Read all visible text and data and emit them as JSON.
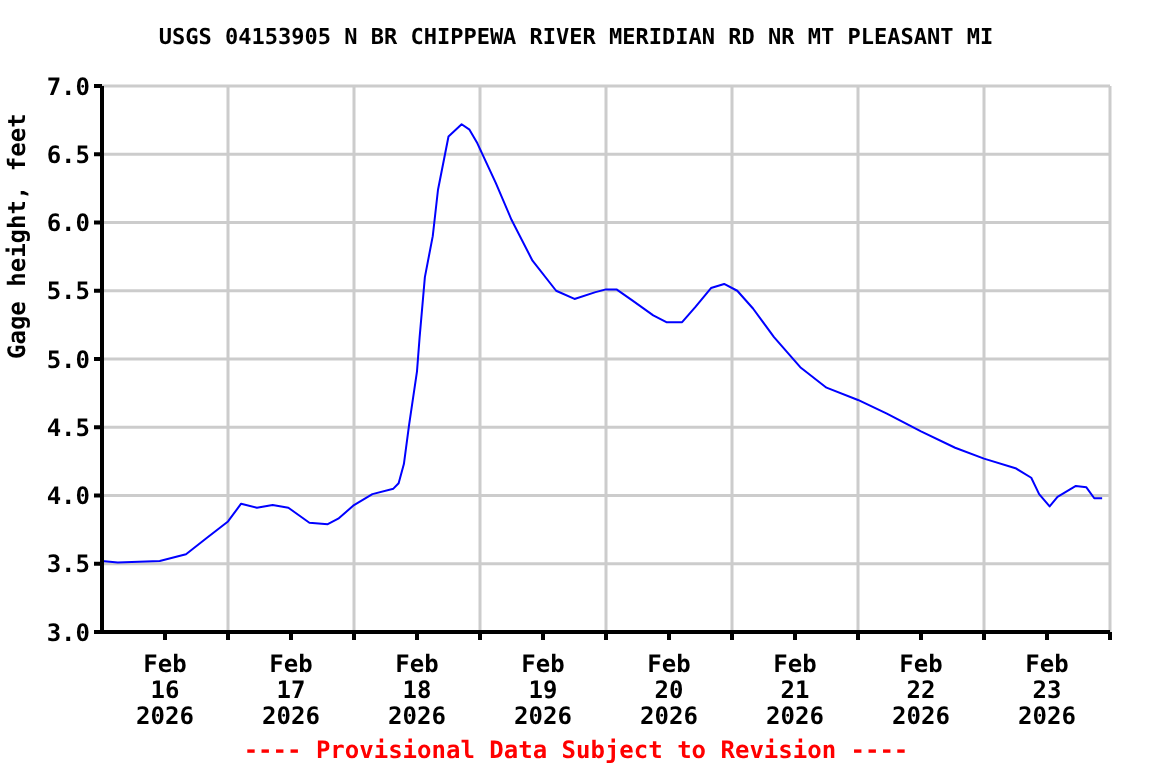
{
  "chart_data": {
    "type": "line",
    "title": "USGS 04153905 N BR CHIPPEWA RIVER MERIDIAN RD NR MT PLEASANT MI",
    "ylabel": "Gage height, feet",
    "annotations": [
      "---- Provisional Data Subject to Revision ----"
    ],
    "x": [
      "2026-02-16T00:00",
      "2026-02-16T03:00",
      "2026-02-16T11:00",
      "2026-02-16T16:00",
      "2026-02-16T20:00",
      "2026-02-17T00:00",
      "2026-02-17T02:30",
      "2026-02-17T05:30",
      "2026-02-17T08:30",
      "2026-02-17T11:30",
      "2026-02-17T15:30",
      "2026-02-17T19:00",
      "2026-02-17T21:00",
      "2026-02-18T00:00",
      "2026-02-18T03:30",
      "2026-02-18T07:30",
      "2026-02-18T08:30",
      "2026-02-18T09:30",
      "2026-02-18T10:30",
      "2026-02-18T12:00",
      "2026-02-18T12:30",
      "2026-02-18T13:30",
      "2026-02-18T15:00",
      "2026-02-18T16:00",
      "2026-02-18T18:00",
      "2026-02-18T20:30",
      "2026-02-18T22:00",
      "2026-02-18T23:30",
      "2026-02-19T03:00",
      "2026-02-19T06:00",
      "2026-02-19T10:00",
      "2026-02-19T14:30",
      "2026-02-19T18:00",
      "2026-02-19T22:00",
      "2026-02-20T00:00",
      "2026-02-20T02:00",
      "2026-02-20T05:00",
      "2026-02-20T09:00",
      "2026-02-20T11:30",
      "2026-02-20T14:30",
      "2026-02-20T17:00",
      "2026-02-20T20:00",
      "2026-02-20T22:30",
      "2026-02-21T01:00",
      "2026-02-21T04:00",
      "2026-02-21T08:00",
      "2026-02-21T13:00",
      "2026-02-21T18:00",
      "2026-02-22T00:00",
      "2026-02-22T05:30",
      "2026-02-22T12:00",
      "2026-02-22T18:30",
      "2026-02-23T00:00",
      "2026-02-23T06:00",
      "2026-02-23T09:00",
      "2026-02-23T10:30",
      "2026-02-23T12:30",
      "2026-02-23T14:00",
      "2026-02-23T17:30",
      "2026-02-23T19:30",
      "2026-02-23T21:00",
      "2026-02-23T22:30"
    ],
    "series": [
      {
        "color": "#0000ff",
        "values": [
          3.52,
          3.51,
          3.52,
          3.57,
          3.69,
          3.81,
          3.94,
          3.91,
          3.93,
          3.91,
          3.8,
          3.79,
          3.83,
          3.93,
          4.01,
          4.05,
          4.09,
          4.23,
          4.52,
          4.91,
          5.16,
          5.6,
          5.9,
          6.24,
          6.63,
          6.72,
          6.68,
          6.58,
          6.29,
          6.02,
          5.72,
          5.5,
          5.44,
          5.49,
          5.51,
          5.51,
          5.43,
          5.32,
          5.27,
          5.27,
          5.38,
          5.52,
          5.55,
          5.5,
          5.37,
          5.16,
          4.94,
          4.79,
          4.7,
          4.6,
          4.47,
          4.35,
          4.27,
          4.2,
          4.13,
          4.01,
          3.92,
          3.99,
          4.07,
          4.06,
          3.98,
          3.98
        ]
      }
    ],
    "xlim": [
      "2026-02-16T00:00",
      "2026-02-24T00:00"
    ],
    "xticks": [
      {
        "value": "2026-02-16T12:00",
        "label": "Feb\n16\n2026"
      },
      {
        "value": "2026-02-17T00:00",
        "label": null
      },
      {
        "value": "2026-02-17T12:00",
        "label": "Feb\n17\n2026"
      },
      {
        "value": "2026-02-18T00:00",
        "label": null
      },
      {
        "value": "2026-02-18T12:00",
        "label": "Feb\n18\n2026"
      },
      {
        "value": "2026-02-19T00:00",
        "label": null
      },
      {
        "value": "2026-02-19T12:00",
        "label": "Feb\n19\n2026"
      },
      {
        "value": "2026-02-20T00:00",
        "label": null
      },
      {
        "value": "2026-02-20T12:00",
        "label": "Feb\n20\n2026"
      },
      {
        "value": "2026-02-21T00:00",
        "label": null
      },
      {
        "value": "2026-02-21T12:00",
        "label": "Feb\n21\n2026"
      },
      {
        "value": "2026-02-22T00:00",
        "label": null
      },
      {
        "value": "2026-02-22T12:00",
        "label": "Feb\n22\n2026"
      },
      {
        "value": "2026-02-23T00:00",
        "label": null
      },
      {
        "value": "2026-02-23T12:00",
        "label": "Feb\n23\n2026"
      },
      {
        "value": "2026-02-24T00:00",
        "label": null
      }
    ],
    "ylim": [
      3,
      7
    ],
    "yticks": [
      {
        "value": 3,
        "label": "3.0"
      },
      {
        "value": 3.5,
        "label": "3.5"
      },
      {
        "value": 4,
        "label": "4.0"
      },
      {
        "value": 4.5,
        "label": "4.5"
      },
      {
        "value": 5,
        "label": "5.0"
      },
      {
        "value": 5.5,
        "label": "5.5"
      },
      {
        "value": 6,
        "label": "6.0"
      },
      {
        "value": 6.5,
        "label": "6.5"
      },
      {
        "value": 7,
        "label": "7.0"
      }
    ],
    "grid": true,
    "legend": false,
    "marker": "none",
    "line_style": "solid"
  }
}
